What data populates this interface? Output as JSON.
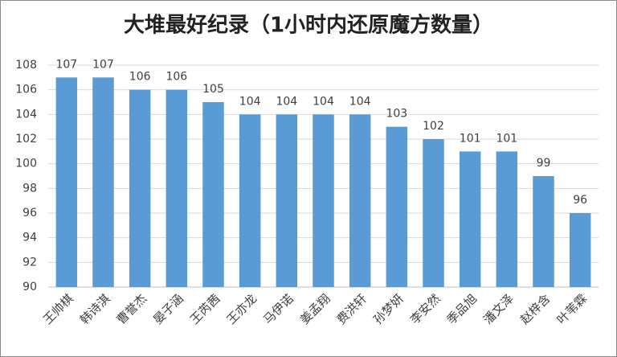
{
  "chart_data": {
    "type": "bar",
    "title": "大堆最好纪录（1小时内还原魔方数量）",
    "categories": [
      "王帅棋",
      "韩诗淇",
      "曹誉杰",
      "晏子涵",
      "王芮茜",
      "王亦龙",
      "马伊诺",
      "姜孟翔",
      "费洪轩",
      "孙梦妍",
      "李安然",
      "季品旭",
      "潘文泽",
      "赵梓含",
      "叶苇霖"
    ],
    "values": [
      107,
      107,
      106,
      106,
      105,
      104,
      104,
      104,
      104,
      103,
      102,
      101,
      101,
      99,
      96
    ],
    "color": "#5b9bd5",
    "ylim": [
      90,
      108
    ],
    "yticks": [
      90,
      92,
      94,
      96,
      98,
      100,
      102,
      104,
      106,
      108
    ],
    "grid": true
  }
}
